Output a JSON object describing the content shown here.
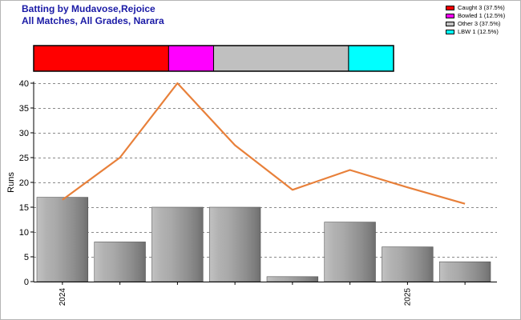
{
  "header": {
    "title_line1": "Batting by Mudavose,Rejoice",
    "title_line2": "All Matches, All Grades, Narara"
  },
  "chart_data": {
    "type": "bar",
    "ylabel": "Runs",
    "ylim": [
      0,
      40
    ],
    "yticks": [
      0,
      5,
      10,
      15,
      20,
      25,
      30,
      35,
      40
    ],
    "grid": true,
    "categories": [
      "2024",
      "",
      "",
      "",
      "",
      "",
      "2025",
      ""
    ],
    "series": [
      {
        "type": "bar",
        "values": [
          17,
          8,
          15,
          15,
          1,
          12,
          7,
          4
        ]
      },
      {
        "type": "line",
        "color": "#e8803a",
        "values": [
          16.5,
          25,
          40,
          27.5,
          18.5,
          22.5,
          19,
          15.7
        ]
      }
    ],
    "dismissals": {
      "legend_position": "top-right",
      "entries": [
        {
          "label": "Caught 3 (37.5%)",
          "count": 3,
          "color": "#ff0000"
        },
        {
          "label": "Bowled 1 (12.5%)",
          "count": 1,
          "color": "#ff00ff"
        },
        {
          "label": "Other 3 (37.5%)",
          "count": 3,
          "color": "#c0c0c0"
        },
        {
          "label": "LBW 1 (12.5%)",
          "count": 1,
          "color": "#00ffff"
        }
      ]
    }
  }
}
